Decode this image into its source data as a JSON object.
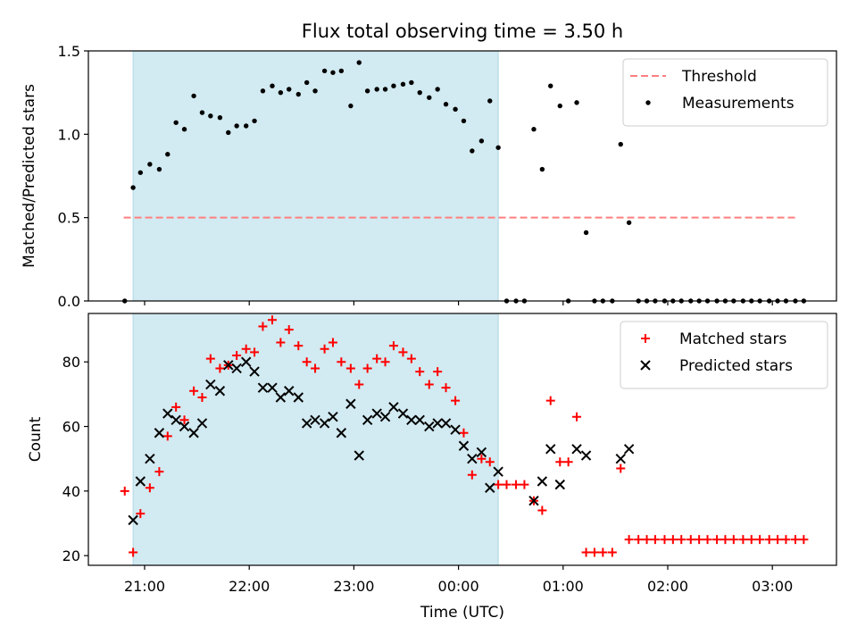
{
  "title": "Flux total observing time = 3.50 h",
  "xlabel": "Time (UTC)",
  "x_ticks": [
    "21:00",
    "22:00",
    "23:00",
    "00:00",
    "01:00",
    "02:00",
    "03:00"
  ],
  "colors": {
    "threshold": "#ff7f7f",
    "measurements": "#000000",
    "matched": "#ff0000",
    "predicted": "#000000",
    "observing_span": "#add8e6"
  },
  "chart_data": [
    {
      "type": "scatter",
      "ylabel": "Matched/Predicted stars",
      "ylim": [
        0,
        1.5
      ],
      "y_ticks": [
        "0.0",
        "0.5",
        "1.0",
        "1.5"
      ],
      "x_unit": "hours after 21:00 UTC",
      "observing_span": [
        -0.11,
        3.38
      ],
      "legend": {
        "placement": "top-right",
        "entries": [
          "Threshold",
          "Measurements"
        ]
      },
      "threshold": {
        "name": "Threshold",
        "y": 0.5,
        "x_range": [
          -0.2,
          6.25
        ]
      },
      "series": [
        {
          "name": "Measurements",
          "x": [
            -0.19,
            -0.11,
            -0.04,
            0.05,
            0.14,
            0.22,
            0.3,
            0.38,
            0.47,
            0.55,
            0.63,
            0.72,
            0.8,
            0.88,
            0.97,
            1.05,
            1.13,
            1.22,
            1.3,
            1.38,
            1.47,
            1.55,
            1.63,
            1.72,
            1.8,
            1.88,
            1.97,
            2.05,
            2.13,
            2.22,
            2.3,
            2.38,
            2.47,
            2.55,
            2.63,
            2.72,
            2.8,
            2.88,
            2.97,
            3.05,
            3.13,
            3.22,
            3.3,
            3.38,
            3.46,
            3.55,
            3.63,
            3.72,
            3.8,
            3.88,
            3.97,
            4.05,
            4.13,
            4.22,
            4.3,
            4.38,
            4.47,
            4.55,
            4.63,
            4.72,
            4.8,
            4.88,
            4.97,
            5.05,
            5.13,
            5.22,
            5.3,
            5.38,
            5.47,
            5.55,
            5.63,
            5.72,
            5.8,
            5.88,
            5.97,
            6.05,
            6.13,
            6.22,
            6.3
          ],
          "y": [
            0.0,
            0.68,
            0.77,
            0.82,
            0.79,
            0.88,
            1.07,
            1.03,
            1.23,
            1.13,
            1.11,
            1.1,
            1.01,
            1.05,
            1.05,
            1.08,
            1.26,
            1.29,
            1.25,
            1.27,
            1.24,
            1.31,
            1.26,
            1.38,
            1.37,
            1.38,
            1.17,
            1.43,
            1.26,
            1.27,
            1.27,
            1.29,
            1.3,
            1.31,
            1.25,
            1.22,
            1.27,
            1.18,
            1.15,
            1.08,
            0.9,
            0.96,
            1.2,
            0.92,
            0.0,
            0.0,
            0.0,
            1.03,
            0.79,
            1.29,
            1.17,
            0.0,
            1.19,
            0.41,
            0.0,
            0.0,
            0.0,
            0.94,
            0.47,
            0.0,
            0.0,
            0.0,
            0.0,
            0.0,
            0.0,
            0.0,
            0.0,
            0.0,
            0.0,
            0.0,
            0.0,
            0.0,
            0.0,
            0.0,
            0.0,
            0.0,
            0.0,
            0.0,
            0.0
          ]
        }
      ]
    },
    {
      "type": "scatter",
      "ylabel": "Count",
      "ylim": [
        17,
        95
      ],
      "y_ticks": [
        "20",
        "40",
        "60",
        "80"
      ],
      "x_unit": "hours after 21:00 UTC",
      "observing_span": [
        -0.11,
        3.38
      ],
      "legend": {
        "placement": "top-right",
        "entries": [
          "Matched stars",
          "Predicted stars"
        ]
      },
      "series": [
        {
          "name": "Matched stars",
          "marker": "+",
          "x": [
            -0.19,
            -0.11,
            -0.04,
            0.05,
            0.14,
            0.22,
            0.3,
            0.38,
            0.47,
            0.55,
            0.63,
            0.72,
            0.8,
            0.88,
            0.97,
            1.05,
            1.13,
            1.22,
            1.3,
            1.38,
            1.47,
            1.55,
            1.63,
            1.72,
            1.8,
            1.88,
            1.97,
            2.05,
            2.13,
            2.22,
            2.3,
            2.38,
            2.47,
            2.55,
            2.63,
            2.72,
            2.8,
            2.88,
            2.97,
            3.05,
            3.13,
            3.22,
            3.3,
            3.38,
            3.46,
            3.55,
            3.63,
            3.72,
            3.8,
            3.88,
            3.97,
            4.05,
            4.13,
            4.22,
            4.3,
            4.38,
            4.47,
            4.55,
            4.63,
            4.72,
            4.8,
            4.88,
            4.97,
            5.05,
            5.13,
            5.22,
            5.3,
            5.38,
            5.47,
            5.55,
            5.63,
            5.72,
            5.8,
            5.88,
            5.97,
            6.05,
            6.13,
            6.22,
            6.3
          ],
          "y": [
            40,
            21,
            33,
            41,
            46,
            57,
            66,
            62,
            71,
            69,
            81,
            78,
            79,
            82,
            84,
            83,
            91,
            93,
            86,
            90,
            85,
            80,
            78,
            84,
            86,
            80,
            78,
            73,
            78,
            81,
            80,
            85,
            83,
            81,
            77,
            73,
            77,
            72,
            68,
            58,
            45,
            50,
            49,
            42,
            42,
            42,
            42,
            37,
            34,
            68,
            49,
            49,
            63,
            21,
            21,
            21,
            21,
            47,
            25,
            25,
            25,
            25,
            25,
            25,
            25,
            25,
            25,
            25,
            25,
            25,
            25,
            25,
            25,
            25,
            25,
            25,
            25,
            25,
            25
          ]
        },
        {
          "name": "Predicted stars",
          "marker": "x",
          "x": [
            -0.11,
            -0.04,
            0.05,
            0.14,
            0.22,
            0.3,
            0.38,
            0.47,
            0.55,
            0.63,
            0.72,
            0.8,
            0.88,
            0.97,
            1.05,
            1.13,
            1.22,
            1.3,
            1.38,
            1.47,
            1.55,
            1.63,
            1.72,
            1.8,
            1.88,
            1.97,
            2.05,
            2.13,
            2.22,
            2.3,
            2.38,
            2.47,
            2.55,
            2.63,
            2.72,
            2.8,
            2.88,
            2.97,
            3.05,
            3.13,
            3.22,
            3.3,
            3.38,
            3.72,
            3.8,
            3.88,
            3.97,
            4.13,
            4.22,
            4.55,
            4.63
          ],
          "y": [
            31,
            43,
            50,
            58,
            64,
            62,
            60,
            58,
            61,
            73,
            71,
            79,
            78,
            80,
            77,
            72,
            72,
            69,
            71,
            69,
            61,
            62,
            61,
            63,
            58,
            67,
            51,
            62,
            64,
            63,
            66,
            64,
            62,
            62,
            60,
            61,
            61,
            59,
            54,
            50,
            52,
            41,
            46,
            37,
            43,
            53,
            42,
            53,
            51,
            50,
            53
          ]
        }
      ]
    }
  ]
}
